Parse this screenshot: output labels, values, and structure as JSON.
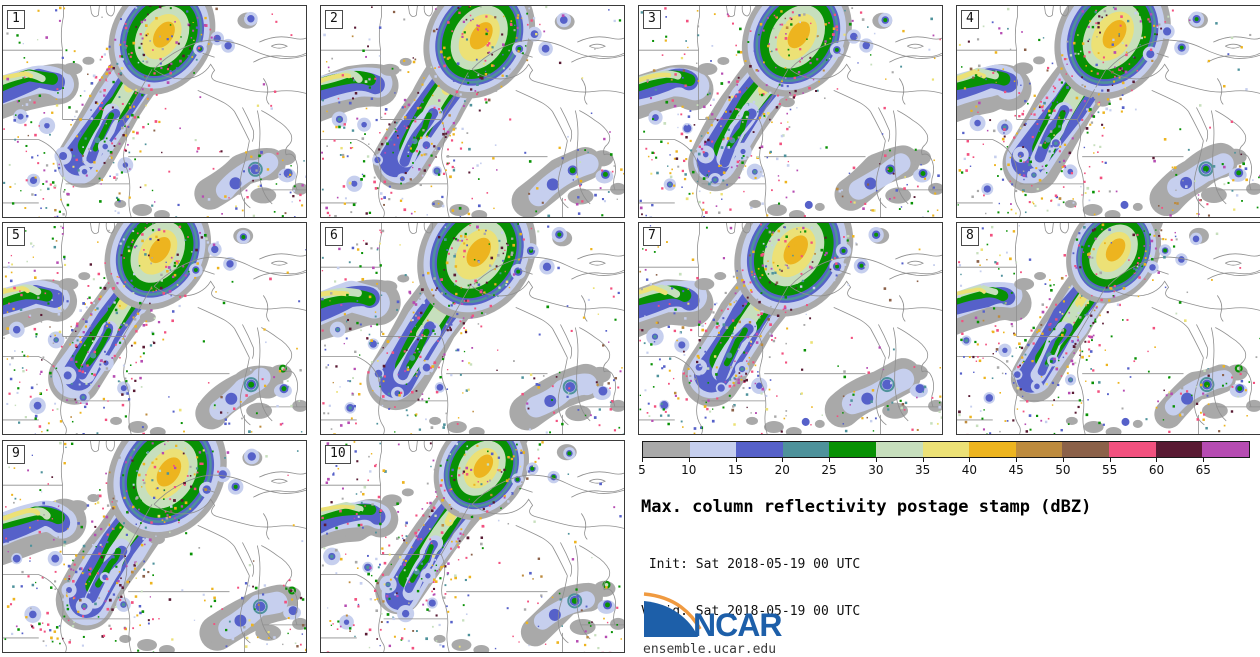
{
  "title": "Max. column reflectivity postage stamp (dBZ)",
  "init_line": " Init: Sat 2018-05-19 00 UTC",
  "valid_line": "Valid: Sat 2018-05-19 00 UTC",
  "panels": [
    {
      "label": "1"
    },
    {
      "label": "2"
    },
    {
      "label": "3"
    },
    {
      "label": "4"
    },
    {
      "label": "5"
    },
    {
      "label": "6"
    },
    {
      "label": "7"
    },
    {
      "label": "8"
    },
    {
      "label": "9"
    },
    {
      "label": "10"
    }
  ],
  "colorbar": {
    "unit": "dBZ",
    "ticks": [
      "5",
      "10",
      "15",
      "20",
      "25",
      "30",
      "35",
      "40",
      "45",
      "50",
      "55",
      "60",
      "65"
    ],
    "colors": [
      "#a9a9a9",
      "#c6cfee",
      "#5661c9",
      "#4e929b",
      "#089104",
      "#c7dfbd",
      "#ece176",
      "#edb41f",
      "#bd8b3e",
      "#8b6149",
      "#f2517f",
      "#591a33",
      "#b64cb2"
    ]
  },
  "palette": {
    "gray": "#a9a9a9",
    "lavender": "#c6cfee",
    "blue": "#5661c9",
    "teal": "#4e929b",
    "green": "#089104",
    "paleGreen": "#c7dfbd",
    "yellow": "#ece176",
    "gold": "#edb41f",
    "tan": "#bd8b3e",
    "brown": "#8b6149",
    "pink": "#f2517f",
    "maroon": "#591a33",
    "magenta": "#b64cb2",
    "mapline": "#8e8e8e"
  },
  "logo": {
    "org": "NCAR",
    "site": "ensemble.ucar.edu",
    "blue": "#1d5fa9",
    "orange": "#f09a40"
  }
}
